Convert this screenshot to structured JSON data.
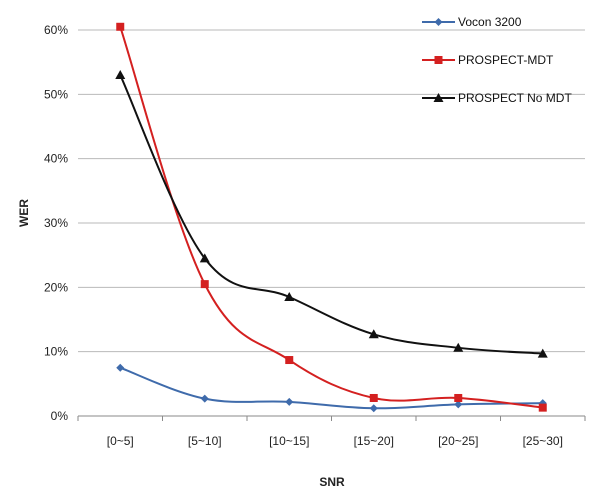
{
  "chart_data": {
    "type": "line",
    "title": "",
    "xlabel": "SNR",
    "ylabel": "WER",
    "categories": [
      "[0~5]",
      "[5~10]",
      "[10~15]",
      "[15~20]",
      "[20~25]",
      "[25~30]"
    ],
    "ylim": [
      0,
      60
    ],
    "yticks": [
      "0%",
      "10%",
      "20%",
      "30%",
      "40%",
      "50%",
      "60%"
    ],
    "grid": true,
    "legend_position": "top-right",
    "series": [
      {
        "name": "Vocon 3200",
        "color": "#3f6bab",
        "marker": "diamond",
        "values": [
          7.5,
          2.7,
          2.2,
          1.2,
          1.8,
          2.0
        ]
      },
      {
        "name": "PROSPECT-MDT",
        "color": "#d42020",
        "marker": "square",
        "values": [
          60.5,
          20.5,
          8.7,
          2.8,
          2.8,
          1.3
        ]
      },
      {
        "name": "PROSPECT No MDT",
        "color": "#111111",
        "marker": "triangle",
        "values": [
          53.0,
          24.5,
          18.5,
          12.7,
          10.6,
          9.7
        ]
      }
    ]
  }
}
